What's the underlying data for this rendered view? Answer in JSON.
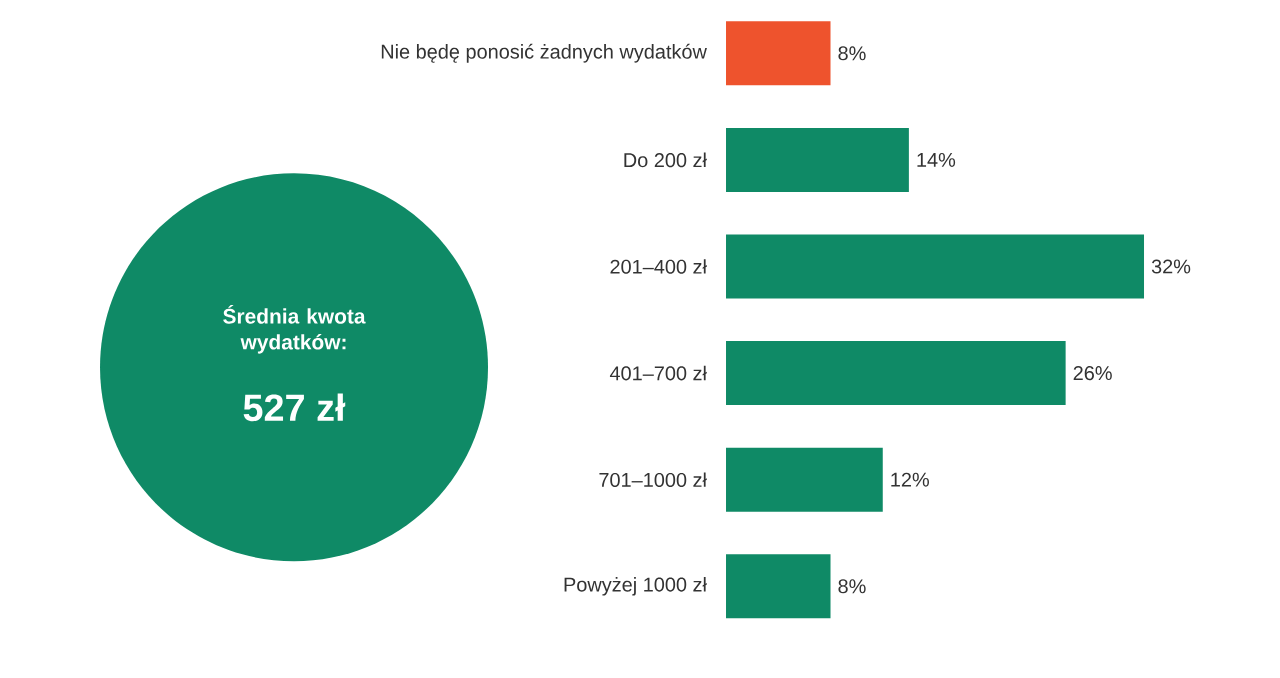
{
  "chart_data": {
    "type": "bar",
    "orientation": "horizontal",
    "categories": [
      "Nie będę ponosić żadnych wydatków",
      "Do 200 zł",
      "201–400 zł",
      "401–700 zł",
      "701–1000 zł",
      "Powyżej 1000 zł"
    ],
    "values": [
      8,
      14,
      32,
      26,
      12,
      8
    ],
    "colors": [
      "#ee532d",
      "#0f8a66",
      "#0f8a66",
      "#0f8a66",
      "#0f8a66",
      "#0f8a66"
    ],
    "value_labels": [
      "8%",
      "14%",
      "32%",
      "26%",
      "12%",
      "8%"
    ],
    "annotations": [
      "Średnia kwota wydatków:",
      "527 zł"
    ]
  }
}
